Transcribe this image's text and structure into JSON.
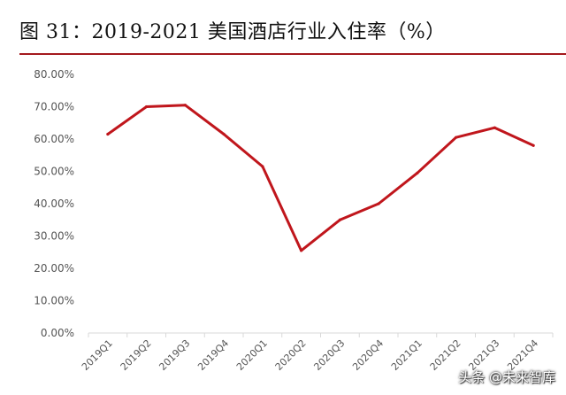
{
  "figure": {
    "title": "图 31：2019-2021 美国酒店行业入住率（%）",
    "watermark": "头条 @未来智库"
  },
  "chart_data": {
    "type": "line",
    "title": "",
    "xlabel": "",
    "ylabel": "",
    "categories": [
      "2019Q1",
      "2019Q2",
      "2019Q3",
      "2019Q4",
      "2020Q1",
      "2020Q2",
      "2020Q3",
      "2020Q4",
      "2021Q1",
      "2021Q2",
      "2021Q3",
      "2021Q4"
    ],
    "series": [
      {
        "values": [
          61.5,
          70.0,
          70.5,
          61.5,
          51.5,
          25.5,
          35.0,
          40.0,
          49.5,
          60.5,
          63.5,
          58.0
        ],
        "color": "#c0161c"
      }
    ],
    "ylim": [
      0,
      80
    ],
    "yticks": [
      "0.00%",
      "10.00%",
      "20.00%",
      "30.00%",
      "40.00%",
      "50.00%",
      "60.00%",
      "70.00%",
      "80.00%"
    ],
    "grid": false,
    "legend": "none",
    "axis_color": "#d9d9d9"
  }
}
